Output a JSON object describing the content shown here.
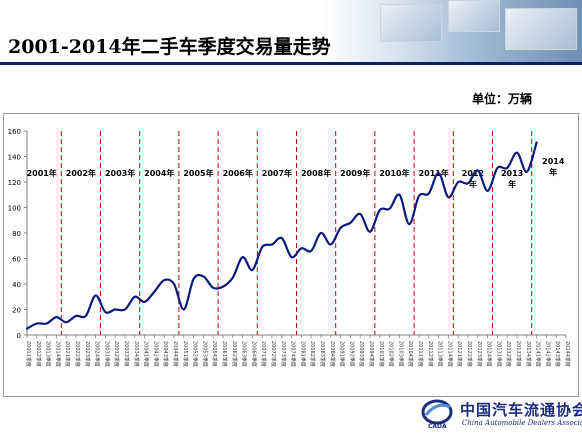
{
  "header": {
    "title": "2001-2014年二手车季度交易量走势",
    "unit": "单位：万辆"
  },
  "footer": {
    "org_cn": "中国汽车流通协会",
    "org_en": "China Automobile Dealers Association",
    "org_abbr": "CADA",
    "logo_icon": "cada-logo-icon"
  },
  "colors": {
    "line": "#0c1a80",
    "divider": "#cc0000",
    "title_rule": "#0a1f66"
  },
  "chart_data": {
    "type": "line",
    "ylim": [
      0,
      160
    ],
    "yticks": [
      0,
      20,
      40,
      60,
      80,
      100,
      120,
      140,
      160
    ],
    "grid": false,
    "year_labels": [
      "2001年",
      "2002年",
      "2003年",
      "2004年",
      "2005年",
      "2006年",
      "2007年",
      "2008年",
      "2009年",
      "2010年",
      "2011年",
      "2012年",
      "2013年",
      "2014年"
    ],
    "quarter_labels": [
      "1季度",
      "2季度",
      "3季度",
      "4季度"
    ],
    "series": [
      {
        "values": [
          5,
          9,
          9,
          14,
          10,
          15,
          15,
          31,
          18,
          20,
          20,
          30,
          26,
          34,
          43,
          40,
          20,
          44,
          46,
          37,
          38,
          45,
          61,
          51,
          69,
          71,
          76,
          61,
          68,
          66,
          80,
          71,
          84,
          88,
          95,
          81,
          98,
          99,
          110,
          87,
          109,
          111,
          127,
          108,
          120,
          119,
          129,
          113,
          131,
          131,
          143,
          128,
          151
        ]
      }
    ]
  }
}
